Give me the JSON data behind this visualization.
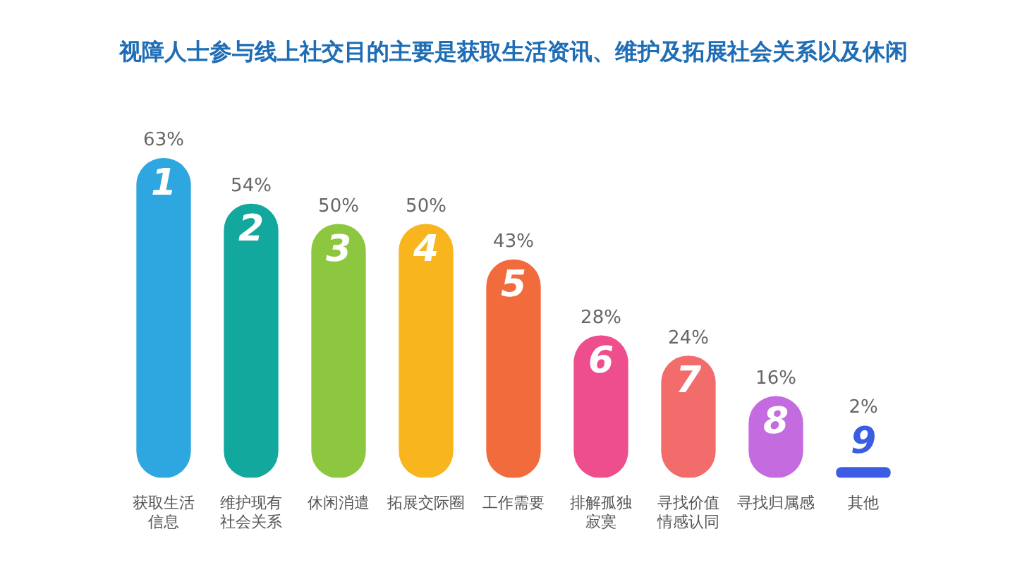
{
  "chart_data": {
    "type": "bar",
    "title": "视障人士参与线上社交目的主要是获取生活资讯、维护及拓展社会关系以及休闲",
    "categories": [
      "获取生活信息",
      "维护现有社会关系",
      "休闲消遣",
      "拓展交际圈",
      "工作需要",
      "排解孤独寂寞",
      "寻找价值情感认同",
      "寻找归属感",
      "其他"
    ],
    "values": [
      63,
      54,
      50,
      50,
      43,
      28,
      24,
      16,
      2
    ],
    "colors": [
      "#2ea7e0",
      "#12a89d",
      "#8dc63f",
      "#f8b51e",
      "#f26b3d",
      "#ee4e8d",
      "#f36c6c",
      "#c46be0",
      "#3b5de3"
    ],
    "value_labels": [
      "63%",
      "54%",
      "50%",
      "50%",
      "43%",
      "28%",
      "24%",
      "16%",
      "2%"
    ],
    "annotations": [
      "1",
      "2",
      "3",
      "4",
      "5",
      "6",
      "7",
      "8",
      "9"
    ],
    "grid": false,
    "legend": false
  }
}
